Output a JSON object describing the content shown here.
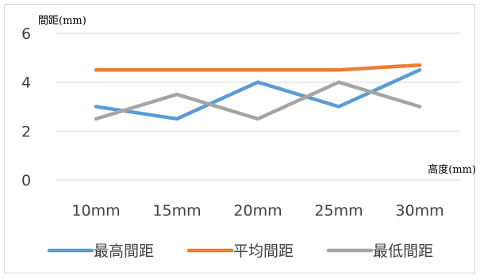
{
  "chart_data": {
    "type": "line",
    "title": "",
    "ylabel": "間距(mm)",
    "xlabel": "高度(mm)",
    "categories": [
      "10mm",
      "15mm",
      "20mm",
      "25mm",
      "30mm"
    ],
    "ylim": [
      0,
      6
    ],
    "yticks": [
      "0",
      "2",
      "4",
      "6"
    ],
    "grid": true,
    "legend_position": "bottom",
    "series": [
      {
        "name": "最高間距",
        "color": "#5b9bd5",
        "values": [
          3,
          2.5,
          4,
          3,
          4.5
        ]
      },
      {
        "name": "平均間距",
        "color": "#ed7d31",
        "values": [
          4.5,
          4.5,
          4.5,
          4.5,
          4.7
        ]
      },
      {
        "name": "最低間距",
        "color": "#a5a5a5",
        "values": [
          2.5,
          3.5,
          2.5,
          4,
          3
        ]
      }
    ]
  }
}
